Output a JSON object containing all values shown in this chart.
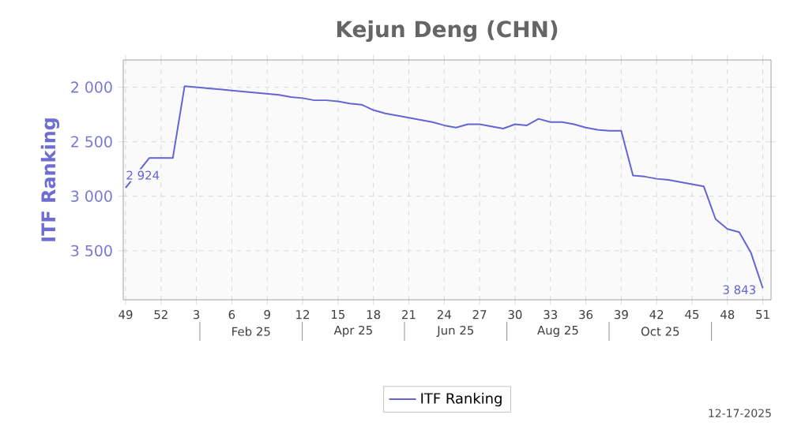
{
  "chart_data": {
    "type": "line",
    "title": "Kejun Deng (CHN)",
    "ylabel": "ITF Ranking",
    "categories": [
      "49",
      null,
      null,
      "52",
      null,
      null,
      "3",
      null,
      null,
      "6",
      null,
      null,
      "9",
      null,
      null,
      "12",
      null,
      null,
      "15",
      null,
      null,
      "18",
      null,
      null,
      "21",
      null,
      null,
      "24",
      null,
      null,
      "27",
      null,
      null,
      "30",
      null,
      null,
      "33",
      null,
      null,
      "36",
      null,
      null,
      "39",
      null,
      null,
      "42",
      null,
      null,
      "45",
      null,
      null,
      "48",
      null,
      null,
      "51"
    ],
    "series": [
      {
        "name": "ITF Ranking",
        "color": "#6464d2",
        "values": [
          2924,
          null,
          2650,
          2650,
          2650,
          1990,
          2000,
          2010,
          2020,
          2030,
          2040,
          2050,
          2060,
          2070,
          2090,
          2100,
          2120,
          2120,
          2130,
          2150,
          2160,
          2210,
          2240,
          2260,
          2280,
          2300,
          2320,
          2350,
          2370,
          2340,
          2340,
          2360,
          2380,
          2340,
          2350,
          2290,
          2320,
          2320,
          2340,
          2370,
          2390,
          2400,
          2400,
          2810,
          2820,
          2840,
          2850,
          2870,
          2890,
          2910,
          3210,
          3300,
          3330,
          3520,
          3843
        ],
        "value_labels": [
          "2 924",
          null,
          null,
          null,
          null,
          null,
          null,
          null,
          null,
          null,
          null,
          null,
          null,
          null,
          null,
          null,
          null,
          null,
          null,
          null,
          null,
          null,
          null,
          null,
          null,
          null,
          null,
          null,
          null,
          null,
          null,
          null,
          null,
          null,
          null,
          null,
          null,
          null,
          null,
          null,
          null,
          null,
          null,
          null,
          null,
          null,
          null,
          null,
          null,
          null,
          null,
          null,
          null,
          null,
          "3 843"
        ]
      }
    ],
    "ylim": [
      3950,
      1750
    ],
    "yticks": [
      {
        "value": 2000,
        "label": "2 000"
      },
      {
        "value": 2500,
        "label": "2 500"
      },
      {
        "value": 3000,
        "label": "3 000"
      },
      {
        "value": 3500,
        "label": "3 500"
      }
    ],
    "grid": true,
    "legend": "bottom",
    "marker": "none",
    "line_style": "solid",
    "annotations": [
      "Feb 25",
      "Apr 25",
      "Jun 25",
      "Aug 25",
      "Oct 25",
      "12-17-2025"
    ]
  }
}
